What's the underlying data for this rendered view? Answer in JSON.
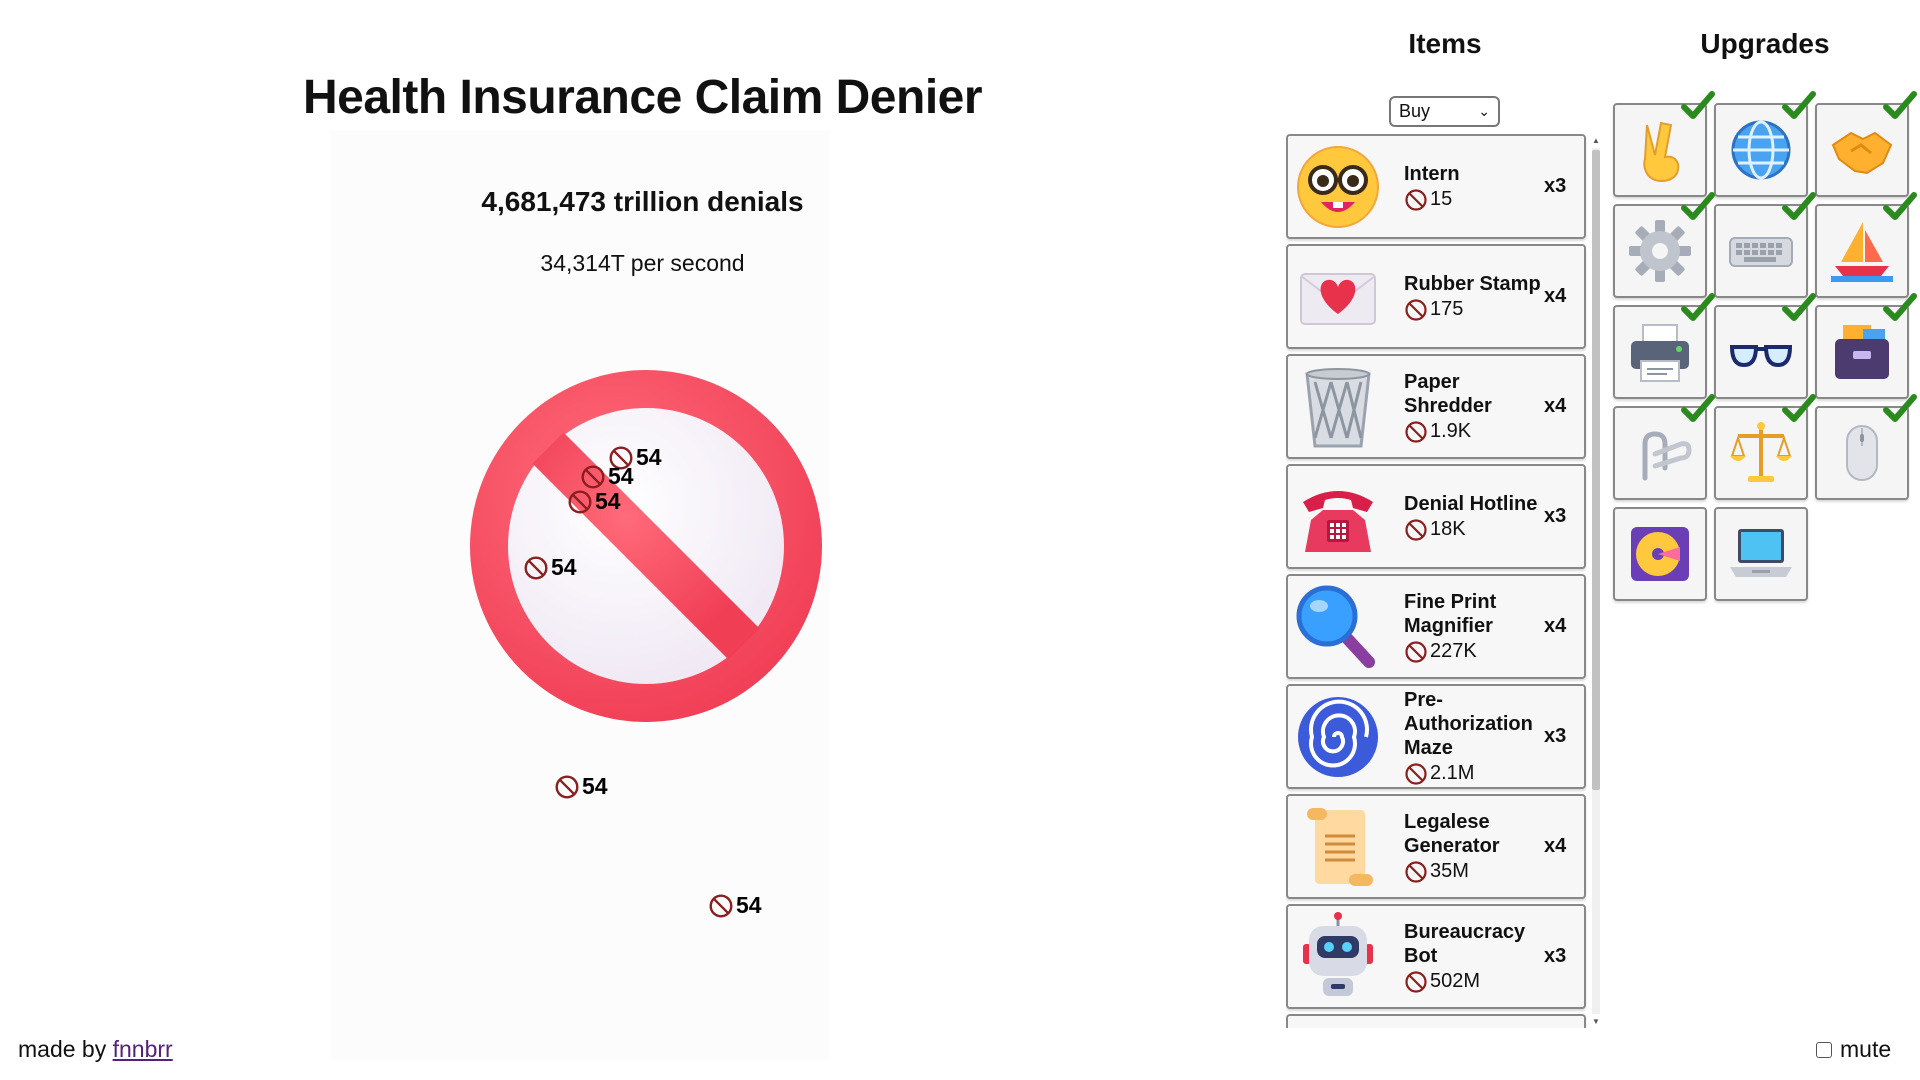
{
  "game": {
    "title": "Health Insurance Claim Denier",
    "count": "4,681,473 trillion denials",
    "rate": "34,314T per second",
    "clicker_icon": "prohibited-sign-icon",
    "floats": [
      "54",
      "54",
      "54",
      "54",
      "54",
      "54"
    ]
  },
  "footer": {
    "prefix": "made by",
    "author": "fnnbrr"
  },
  "items": {
    "heading": "Items",
    "buy_mode": "Buy",
    "list": [
      {
        "name": "Intern",
        "cost": "15",
        "qty": "x3",
        "icon": "nerd-face-icon"
      },
      {
        "name": "Rubber Stamp",
        "cost": "175",
        "qty": "x4",
        "icon": "heart-envelope-icon"
      },
      {
        "name": "Paper Shredder",
        "cost": "1.9K",
        "qty": "x4",
        "icon": "wastebasket-icon"
      },
      {
        "name": "Denial Hotline",
        "cost": "18K",
        "qty": "x3",
        "icon": "telephone-icon"
      },
      {
        "name": "Fine Print Magnifier",
        "cost": "227K",
        "qty": "x4",
        "icon": "magnifying-glass-icon"
      },
      {
        "name": "Pre-Authorization Maze",
        "cost": "2.1M",
        "qty": "x3",
        "icon": "spiral-icon"
      },
      {
        "name": "Legalese Generator",
        "cost": "35M",
        "qty": "x4",
        "icon": "scroll-icon"
      },
      {
        "name": "Bureaucracy Bot",
        "cost": "502M",
        "qty": "x3",
        "icon": "robot-icon"
      }
    ]
  },
  "upgrades": {
    "heading": "Upgrades",
    "list": [
      {
        "icon": "victory-hand-icon",
        "purchased": true
      },
      {
        "icon": "globe-icon",
        "purchased": true
      },
      {
        "icon": "handshake-icon",
        "purchased": true
      },
      {
        "icon": "gear-icon",
        "purchased": true
      },
      {
        "icon": "keyboard-icon",
        "purchased": true
      },
      {
        "icon": "sailboat-icon",
        "purchased": true
      },
      {
        "icon": "printer-icon",
        "purchased": true
      },
      {
        "icon": "glasses-icon",
        "purchased": true
      },
      {
        "icon": "card-file-box-icon",
        "purchased": true
      },
      {
        "icon": "linked-paperclips-icon",
        "purchased": true
      },
      {
        "icon": "balance-scale-icon",
        "purchased": true
      },
      {
        "icon": "computer-mouse-icon",
        "purchased": true
      },
      {
        "icon": "dvd-icon",
        "purchased": false
      },
      {
        "icon": "laptop-icon",
        "purchased": false
      }
    ]
  },
  "mute": {
    "label": "mute",
    "checked": false
  }
}
